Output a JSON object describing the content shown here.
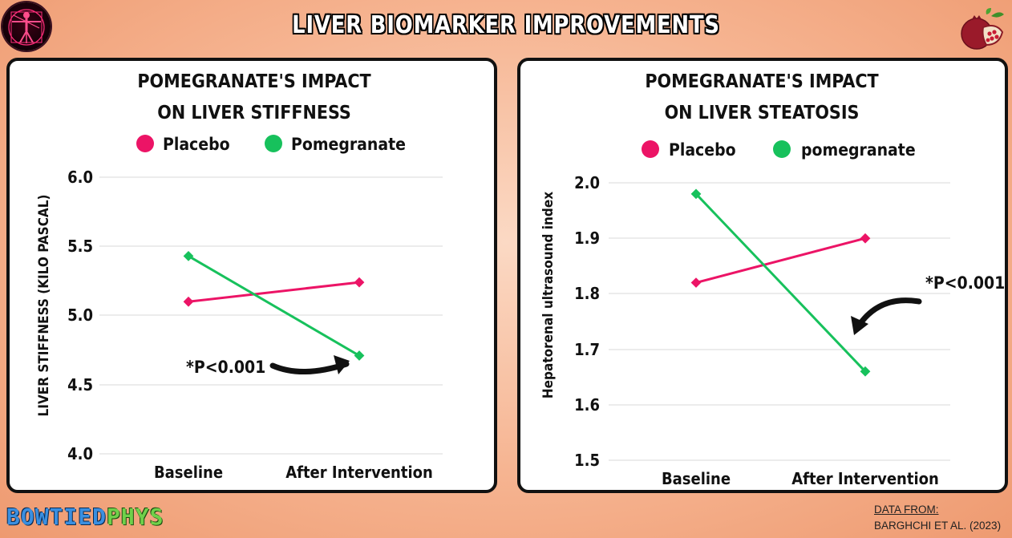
{
  "page": {
    "title": "LIVER BIOMARKER IMPROVEMENTS",
    "brand_left": "BOWTIED",
    "brand_right": "PHYS",
    "source_label": "DATA FROM:",
    "source_citation": "BARGHCHI ET AL. (2023)",
    "logo_left_icon": "vitruvian-man-icon",
    "logo_right_icon": "pomegranate-icon"
  },
  "colors": {
    "placebo": "#ec1466",
    "pomegranate": "#17c15c"
  },
  "chart_data": [
    {
      "type": "line",
      "title_line1": "POMEGRANATE'S IMPACT",
      "title_line2": "ON LIVER STIFFNESS",
      "ylabel": "LIVER STIFFNESS (KILO PASCAL)",
      "xlabel": "",
      "categories": [
        "Baseline",
        "After Intervention"
      ],
      "ylim": [
        4.0,
        6.0
      ],
      "yticks": [
        "4.0",
        "4.5",
        "5.0",
        "5.5",
        "6.0"
      ],
      "grid": true,
      "legend_position": "top-center",
      "series": [
        {
          "name": "Placebo",
          "values": [
            5.1,
            5.24
          ]
        },
        {
          "name": "Pomegranate",
          "values": [
            5.43,
            4.71
          ]
        }
      ],
      "annotation": "*P<0.001"
    },
    {
      "type": "line",
      "title_line1": "POMEGRANATE'S IMPACT",
      "title_line2": "ON LIVER STEATOSIS",
      "ylabel": "Hepatorenal ultrasound index",
      "xlabel": "",
      "categories": [
        "Baseline",
        "After Intervention"
      ],
      "ylim": [
        1.5,
        2.0
      ],
      "yticks": [
        "1.5",
        "1.6",
        "1.7",
        "1.8",
        "1.9",
        "2.0"
      ],
      "grid": true,
      "legend_position": "top-center",
      "series": [
        {
          "name": "Placebo",
          "values": [
            1.82,
            1.9
          ]
        },
        {
          "name": "pomegranate",
          "values": [
            1.98,
            1.66
          ]
        }
      ],
      "annotation": "*P<0.001"
    }
  ]
}
